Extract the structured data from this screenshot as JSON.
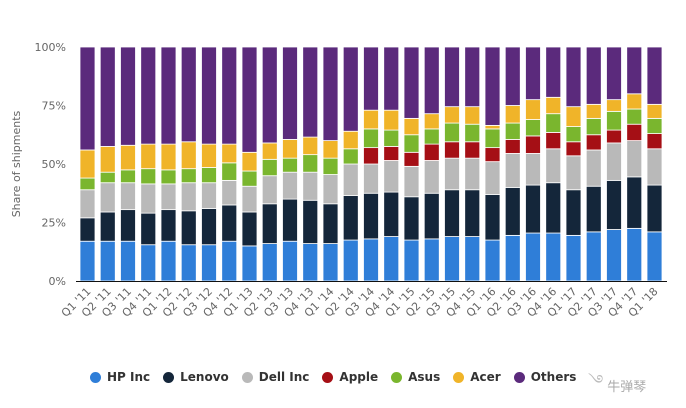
{
  "chart_data": {
    "type": "bar",
    "stacked": true,
    "title": "",
    "xlabel": "",
    "ylabel": "Share of shipments",
    "ylim": [
      0,
      100
    ],
    "yticks": [
      "0%",
      "25%",
      "50%",
      "75%",
      "100%"
    ],
    "ytick_values": [
      0,
      25,
      50,
      75,
      100
    ],
    "grid": false,
    "legend_position": "bottom",
    "categories": [
      "Q1 '11",
      "Q2 '11",
      "Q3 '11",
      "Q4 '11",
      "Q1 '12",
      "Q2 '12",
      "Q3 '12",
      "Q4 '12",
      "Q1 '13",
      "Q2 '13",
      "Q3 '13",
      "Q4 '13",
      "Q1 '14",
      "Q2 '14",
      "Q3 '14",
      "Q4 '14",
      "Q1 '15",
      "Q2 '15",
      "Q3 '15",
      "Q4 '15",
      "Q1 '16",
      "Q2 '16",
      "Q3 '16",
      "Q4 '16",
      "Q1 '17",
      "Q2 '17",
      "Q3 '17",
      "Q4 '17",
      "Q1 '18"
    ],
    "series": [
      {
        "name": "HP Inc",
        "color": "#2f7ed8",
        "values": [
          17,
          17,
          17,
          15.5,
          17,
          15.5,
          15.5,
          17,
          15,
          16,
          17,
          16,
          16,
          17.5,
          18,
          19,
          17.5,
          18,
          19,
          19,
          17.5,
          19.5,
          20.5,
          20.5,
          19.5,
          21,
          22,
          22.5,
          21
        ]
      },
      {
        "name": "Lenovo",
        "color": "#14263a",
        "values": [
          10,
          12.5,
          13.5,
          13.5,
          13.5,
          14.5,
          15.5,
          15.5,
          14.5,
          17,
          18,
          18.5,
          17,
          19,
          19.5,
          19,
          18.5,
          19.5,
          20,
          20,
          19.5,
          20.5,
          20.5,
          21.5,
          19.5,
          19.5,
          21,
          22,
          20
        ]
      },
      {
        "name": "Dell Inc",
        "color": "#b9b9b9",
        "values": [
          12,
          12.5,
          11.5,
          12.5,
          11,
          12,
          11,
          10.5,
          11,
          12,
          11.5,
          12,
          12.5,
          13.5,
          12.5,
          13.5,
          13,
          14,
          13.5,
          13.5,
          14,
          14.5,
          13.5,
          14.5,
          14.5,
          15.5,
          16,
          15.5,
          15.5
        ]
      },
      {
        "name": "Apple",
        "color": "#a50f15",
        "values": [
          0,
          0,
          0,
          0,
          0,
          0,
          0,
          0,
          0,
          0,
          0,
          0,
          0,
          0,
          7,
          6,
          6,
          7,
          7,
          7,
          6,
          6,
          7.5,
          7,
          6,
          6.5,
          5.5,
          7,
          6.5
        ]
      },
      {
        "name": "Asus",
        "color": "#7ab62e",
        "values": [
          5,
          4.5,
          5.5,
          6.5,
          6,
          6,
          6.5,
          7.5,
          6.5,
          7,
          6,
          7.5,
          7,
          6.5,
          8,
          7,
          7.5,
          6.5,
          8,
          7.5,
          8,
          7,
          7,
          8,
          6.5,
          7,
          8,
          6.5,
          6.5
        ]
      },
      {
        "name": "Acer",
        "color": "#f0b429",
        "values": [
          12,
          11,
          10.5,
          10.5,
          11,
          11.5,
          10,
          8,
          8,
          7,
          8,
          7.5,
          7.5,
          7.5,
          8,
          8.5,
          7,
          6.5,
          7,
          7.5,
          1.5,
          7.5,
          8.5,
          7,
          8.5,
          6,
          5,
          6.5,
          6
        ]
      },
      {
        "name": "Others",
        "color": "#5b2a7c",
        "values": [
          44,
          42.5,
          42,
          41.5,
          41.5,
          40.5,
          41.5,
          41.5,
          45,
          41,
          39.5,
          38.5,
          40,
          36,
          27,
          27,
          30.5,
          28.5,
          25.5,
          25.5,
          33.5,
          25,
          22.5,
          21.5,
          25.5,
          24.5,
          22.5,
          20,
          24.5
        ]
      }
    ]
  },
  "legend": {
    "items": [
      {
        "label": "HP Inc",
        "color": "#2f7ed8"
      },
      {
        "label": "Lenovo",
        "color": "#14263a"
      },
      {
        "label": "Dell Inc",
        "color": "#b9b9b9"
      },
      {
        "label": "Apple",
        "color": "#a50f15"
      },
      {
        "label": "Asus",
        "color": "#7ab62e"
      },
      {
        "label": "Acer",
        "color": "#f0b429"
      },
      {
        "label": "Others",
        "color": "#5b2a7c"
      }
    ]
  },
  "watermark": {
    "text": "牛弹琴",
    "icon": "swirl-icon"
  }
}
